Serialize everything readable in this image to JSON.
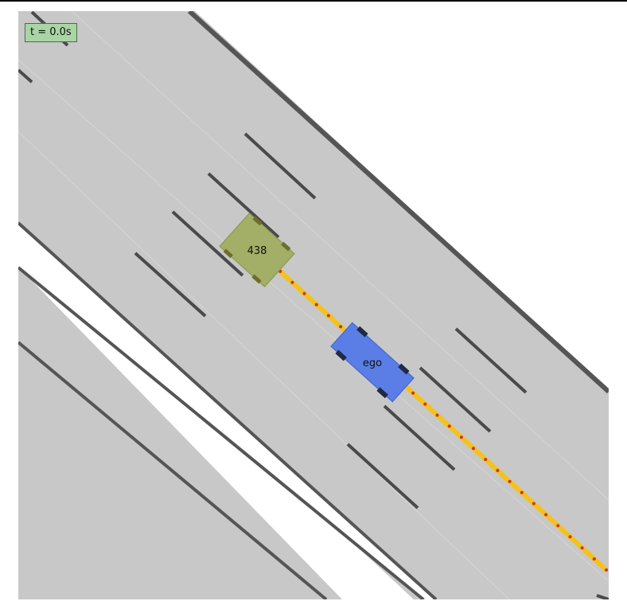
{
  "time_label": "t = 0.0s",
  "vehicles": [
    {
      "label": "438",
      "role": "other",
      "color": "#a3ae66"
    },
    {
      "label": "ego",
      "role": "ego",
      "color": "#5a7ee6"
    }
  ],
  "colors": {
    "road": "#c8c8c8",
    "road_edge": "#555555",
    "lane_marking": "#4a4a4a",
    "trajectory": "#f5c21a",
    "trajectory_points": "#c0392b",
    "background": "#ffffff"
  }
}
